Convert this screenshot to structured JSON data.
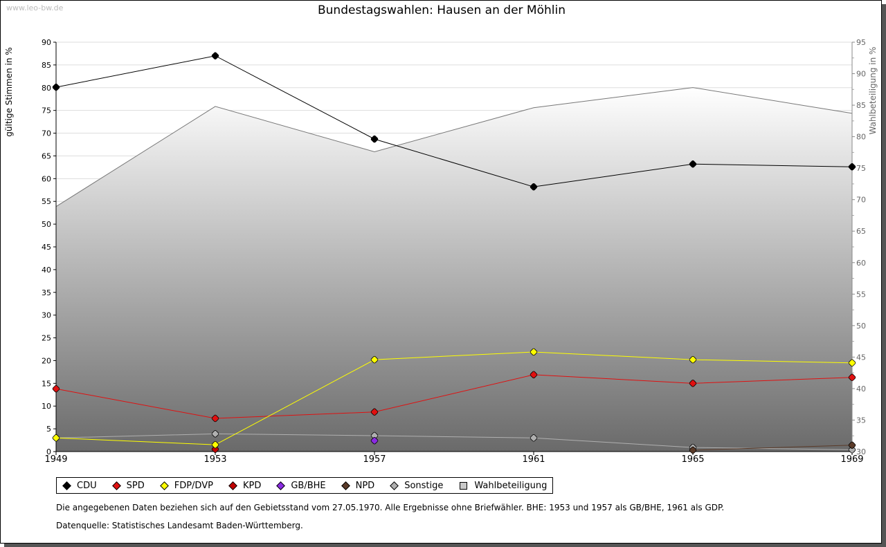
{
  "watermark": "www.leo-bw.de",
  "chart_data": {
    "type": "line",
    "title": "Bundestagswahlen: Hausen an der Möhlin",
    "ylabel": "gültige Stimmen in %",
    "y2label": "Wahlbeteiligung in %",
    "ylim": [
      0,
      90
    ],
    "y2lim": [
      30,
      95
    ],
    "yticks": [
      "0",
      "5",
      "10",
      "15",
      "20",
      "25",
      "30",
      "35",
      "40",
      "45",
      "50",
      "55",
      "60",
      "65",
      "70",
      "75",
      "80",
      "85",
      "90"
    ],
    "y2ticks": [
      "30",
      "35",
      "40",
      "45",
      "50",
      "55",
      "60",
      "65",
      "70",
      "75",
      "80",
      "85",
      "90",
      "95"
    ],
    "x": [
      "1949",
      "1953",
      "1957",
      "1961",
      "1965",
      "1969"
    ],
    "series": [
      {
        "name": "CDU",
        "color": "#000000",
        "values": [
          80.1,
          87.0,
          68.7,
          58.2,
          63.2,
          62.6
        ]
      },
      {
        "name": "SPD",
        "color": "#e01010",
        "values": [
          13.8,
          7.3,
          8.7,
          16.9,
          15.0,
          16.3
        ]
      },
      {
        "name": "FDP/DVP",
        "color": "#ffff00",
        "values": [
          3.0,
          1.5,
          20.2,
          21.9,
          20.2,
          19.5
        ]
      },
      {
        "name": "KPD",
        "color": "#c00000",
        "values": [
          null,
          0.5,
          null,
          null,
          null,
          null
        ]
      },
      {
        "name": "GB/BHE",
        "color": "#8a2be2",
        "values": [
          null,
          null,
          2.4,
          null,
          null,
          null
        ]
      },
      {
        "name": "NPD",
        "color": "#5a3a28",
        "values": [
          null,
          null,
          null,
          null,
          0.3,
          1.4
        ]
      },
      {
        "name": "Sonstige",
        "color": "#b0b0b0",
        "values": [
          3.0,
          3.9,
          3.5,
          3.0,
          0.9,
          0.4
        ]
      }
    ],
    "turnout": {
      "name": "Wahlbeteiligung",
      "color": "#c8c8c8",
      "values": [
        68.9,
        84.8,
        77.6,
        84.6,
        87.8,
        83.7
      ]
    },
    "legend": "bottom"
  },
  "notes": {
    "line1": "Die angegebenen Daten beziehen sich auf den Gebietsstand vom 27.05.1970. Alle Ergebnisse ohne Briefwähler. BHE: 1953 und 1957 als GB/BHE, 1961 als GDP.",
    "line2": "Datenquelle: Statistisches Landesamt Baden-Württemberg."
  }
}
